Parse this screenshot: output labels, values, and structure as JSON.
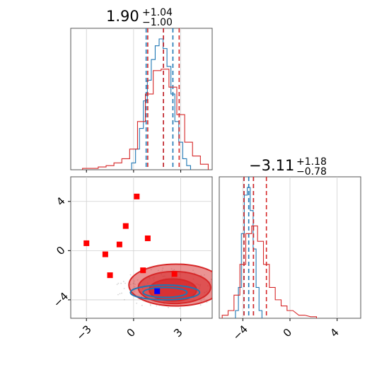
{
  "chart_data": [
    {
      "type": "histogram",
      "panel": "param1-marginal",
      "title": {
        "median": "1.90",
        "plus": "+1.04",
        "minus": "−1.00"
      },
      "xlim": [
        -4.0,
        5.0
      ],
      "grid": true,
      "series": [
        {
          "name": "",
          "color": "#1f77b4",
          "x": [
            0.0,
            0.25,
            0.5,
            0.75,
            1.0,
            1.25,
            1.5,
            1.75,
            2.0,
            2.25,
            2.5,
            2.75,
            3.0,
            3.25,
            3.5
          ],
          "values": [
            0.05,
            0.15,
            0.3,
            0.5,
            0.65,
            0.8,
            0.9,
            0.95,
            0.88,
            0.75,
            0.55,
            0.35,
            0.2,
            0.08,
            0.03
          ],
          "quantiles": [
            0.8,
            1.9,
            2.5
          ]
        },
        {
          "name": "",
          "color": "#d62728",
          "x": [
            -3.0,
            -2.5,
            -2.0,
            -1.5,
            -1.0,
            -0.5,
            0.0,
            0.5,
            1.0,
            1.5,
            2.0,
            2.5,
            3.0,
            3.5,
            4.0,
            4.5
          ],
          "values": [
            0.01,
            0.01,
            0.02,
            0.03,
            0.05,
            0.08,
            0.15,
            0.35,
            0.55,
            0.72,
            0.73,
            0.6,
            0.4,
            0.2,
            0.1,
            0.04
          ],
          "quantiles": [
            0.9,
            1.9,
            2.9
          ]
        }
      ]
    },
    {
      "type": "histogram",
      "panel": "param2-marginal",
      "title": {
        "median": "−3.11",
        "plus": "+1.18",
        "minus": "−0.78"
      },
      "xlim": [
        -6.0,
        6.0
      ],
      "xticks": [
        -4,
        0,
        4
      ],
      "xtick_labels": [
        "−4",
        "0",
        "4"
      ],
      "grid": true,
      "series": [
        {
          "name": "",
          "color": "#1f77b4",
          "x": [
            -4.5,
            -4.25,
            -4.0,
            -3.75,
            -3.5,
            -3.25,
            -3.0,
            -2.75,
            -2.5
          ],
          "values": [
            0.05,
            0.2,
            0.55,
            0.8,
            0.85,
            0.7,
            0.45,
            0.2,
            0.05
          ],
          "quantiles": [
            -3.9,
            -3.5,
            -3.1
          ]
        },
        {
          "name": "",
          "color": "#d62728",
          "x": [
            -5.5,
            -5.0,
            -4.5,
            -4.0,
            -3.5,
            -3.0,
            -2.5,
            -2.0,
            -1.5,
            -1.0,
            -0.5,
            0.0,
            1.0,
            2.0
          ],
          "values": [
            0.02,
            0.05,
            0.15,
            0.35,
            0.55,
            0.6,
            0.5,
            0.35,
            0.2,
            0.12,
            0.08,
            0.05,
            0.02,
            0.01
          ],
          "quantiles": [
            -3.9,
            -3.1,
            -2.0
          ]
        }
      ]
    },
    {
      "type": "scatter",
      "panel": "joint",
      "xlim": [
        -4.0,
        5.0
      ],
      "ylim": [
        -5.5,
        6.0
      ],
      "xticks": [
        -3,
        0,
        3
      ],
      "xtick_labels": [
        "−3",
        "0",
        "3"
      ],
      "yticks": [
        -4,
        0,
        4
      ],
      "ytick_labels": [
        "−4",
        "0",
        "4"
      ],
      "grid": true,
      "contours": [
        {
          "color": "#d62728",
          "levels": [
            {
              "cx": 2.7,
              "cy": -2.8,
              "rx": 3.0,
              "ry": 1.7,
              "fill_opacity": 0.5
            },
            {
              "cx": 2.6,
              "cy": -3.0,
              "rx": 2.3,
              "ry": 1.3,
              "fill_opacity": 0.6
            },
            {
              "cx": 2.5,
              "cy": -3.2,
              "rx": 1.5,
              "ry": 0.9,
              "fill_opacity": 0.75
            }
          ]
        },
        {
          "color": "#1f77b4",
          "levels": [
            {
              "cx": 2.0,
              "cy": -3.4,
              "rx": 2.2,
              "ry": 0.6,
              "fill_opacity": 0
            },
            {
              "cx": 2.0,
              "cy": -3.4,
              "rx": 1.4,
              "ry": 0.4,
              "fill_opacity": 0
            }
          ]
        }
      ],
      "markers": [
        {
          "x": 0.2,
          "y": 4.4,
          "color": "#ff0000",
          "shape": "square"
        },
        {
          "x": -0.5,
          "y": 2.0,
          "color": "#ff0000",
          "shape": "square"
        },
        {
          "x": 0.9,
          "y": 1.0,
          "color": "#ff0000",
          "shape": "square"
        },
        {
          "x": -3.0,
          "y": 0.6,
          "color": "#ff0000",
          "shape": "square"
        },
        {
          "x": -0.9,
          "y": 0.5,
          "color": "#ff0000",
          "shape": "square"
        },
        {
          "x": -1.8,
          "y": -0.3,
          "color": "#ff0000",
          "shape": "square"
        },
        {
          "x": 0.6,
          "y": -1.6,
          "color": "#ff0000",
          "shape": "square"
        },
        {
          "x": -1.5,
          "y": -2.0,
          "color": "#ff0000",
          "shape": "square"
        },
        {
          "x": 2.6,
          "y": -1.9,
          "color": "#ff0000",
          "shape": "square"
        },
        {
          "x": 1.5,
          "y": -3.3,
          "color": "#0000ff",
          "shape": "square"
        }
      ]
    }
  ]
}
